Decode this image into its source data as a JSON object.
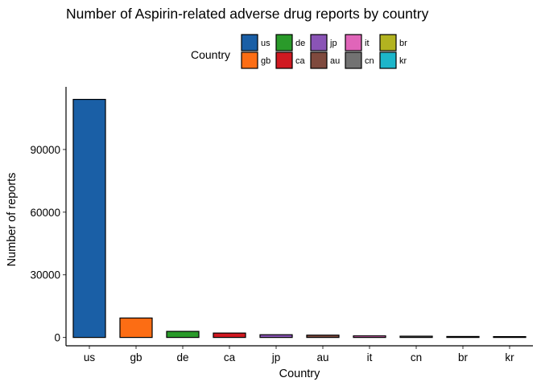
{
  "chart_data": {
    "type": "bar",
    "title": "Number of Aspirin-related adverse drug reports by country",
    "xlabel": "Country",
    "ylabel": "Number of reports",
    "categories": [
      "us",
      "gb",
      "de",
      "ca",
      "jp",
      "au",
      "it",
      "cn",
      "br",
      "kr"
    ],
    "values": [
      114000,
      9300,
      2900,
      2100,
      1300,
      1100,
      750,
      600,
      450,
      400
    ],
    "colors": [
      "#1a5fa6",
      "#fc6d14",
      "#2a9a2a",
      "#d01921",
      "#8a54b6",
      "#7f4a3e",
      "#e065b9",
      "#727272",
      "#b2b320",
      "#1db6ca"
    ],
    "ylim": [
      -4000,
      120000
    ],
    "yticks": [
      0,
      30000,
      60000,
      90000
    ],
    "ytick_labels": [
      "0",
      "30000",
      "60000",
      "90000"
    ],
    "legend": {
      "title": "Country",
      "placement": "top",
      "items": [
        "us",
        "gb",
        "de",
        "ca",
        "jp",
        "au",
        "it",
        "cn",
        "br",
        "kr"
      ]
    },
    "grid": false
  }
}
